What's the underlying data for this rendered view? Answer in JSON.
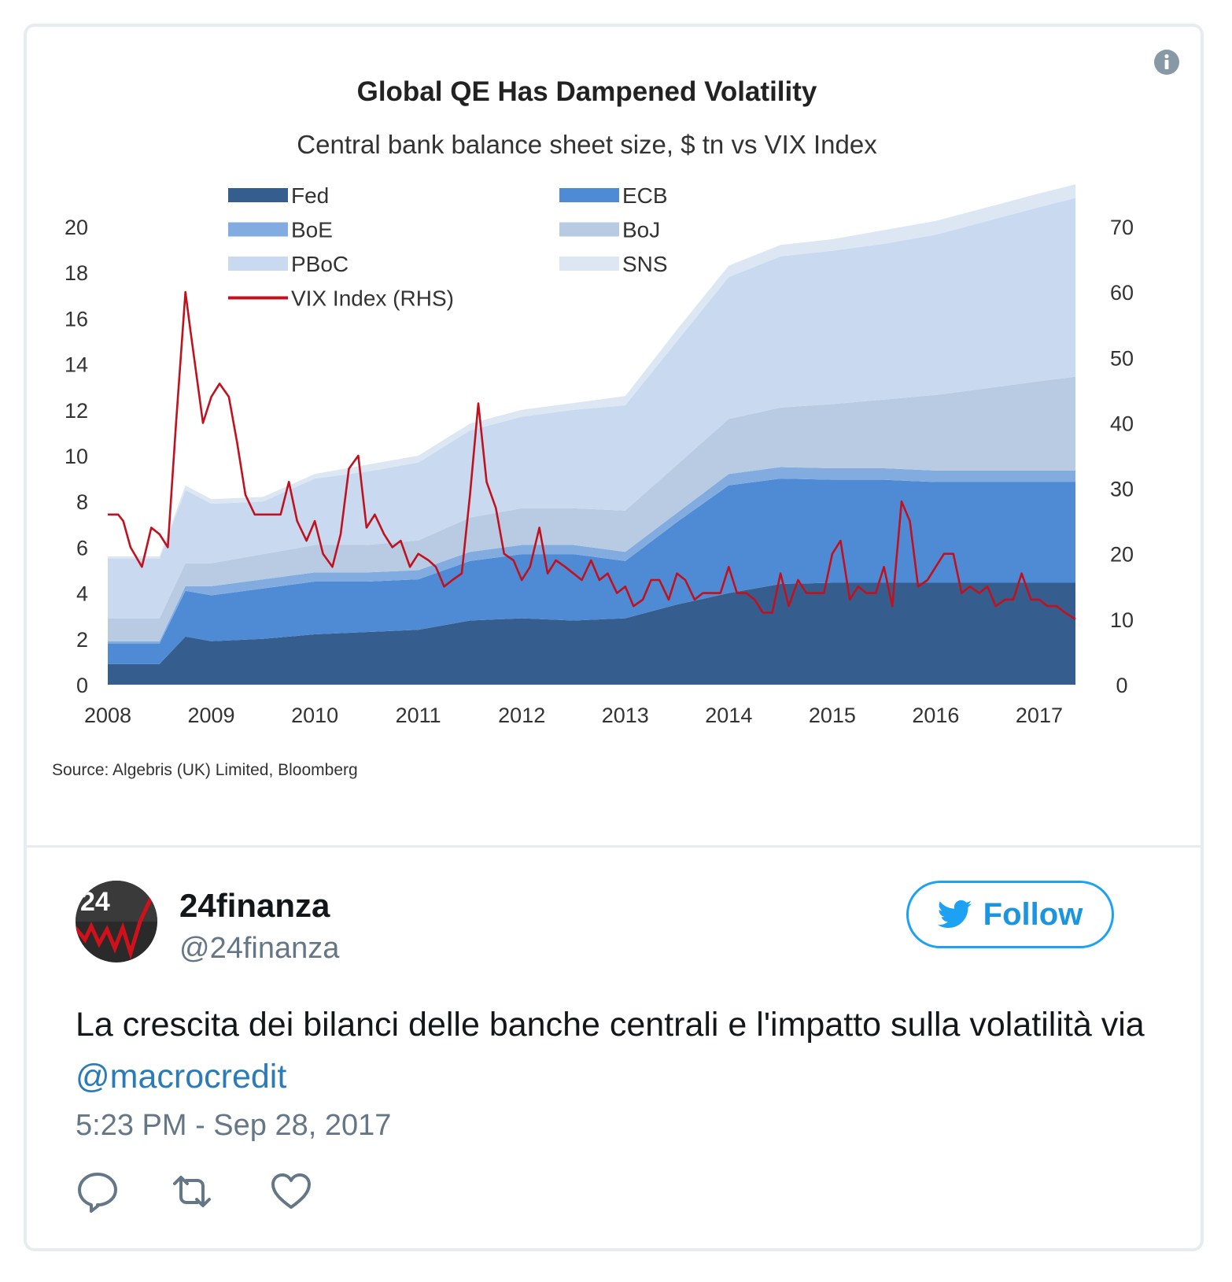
{
  "tweet": {
    "author_name": "24finanza",
    "author_handle": "@24finanza",
    "follow_label": "Follow",
    "text_before": "La crescita dei bilanci delle banche centrali e l'impatto sulla volatilità via ",
    "mention": "@macrocredit",
    "timestamp": "5:23 PM - Sep 28, 2017",
    "avatar_text": "24",
    "icons": {
      "info": "info-icon",
      "follow": "twitter-bird-icon",
      "reply": "reply-icon",
      "retweet": "retweet-icon",
      "like": "heart-icon"
    }
  },
  "chart_data": {
    "type": "area",
    "title": "Global QE Has Dampened Volatility",
    "subtitle": "Central bank balance sheet size, $ tn vs VIX Index",
    "source": "Source: Algebris (UK) Limited, Bloomberg",
    "x_ticks": [
      "2008",
      "2009",
      "2010",
      "2011",
      "2012",
      "2013",
      "2014",
      "2015",
      "2016",
      "2017"
    ],
    "y_left_ticks": [
      "0",
      "2",
      "4",
      "6",
      "8",
      "10",
      "12",
      "14",
      "16",
      "18",
      "20"
    ],
    "y_right_ticks": [
      "0",
      "10",
      "20",
      "30",
      "40",
      "50",
      "60",
      "70"
    ],
    "ylim_left": [
      0,
      20
    ],
    "ylim_right": [
      0,
      70
    ],
    "xlim": [
      2008,
      2017.35
    ],
    "x": [
      2008.0,
      2008.5,
      2008.75,
      2009.0,
      2009.5,
      2010.0,
      2010.5,
      2011.0,
      2011.5,
      2012.0,
      2012.5,
      2013.0,
      2013.5,
      2014.0,
      2014.5,
      2015.0,
      2015.5,
      2016.0,
      2016.5,
      2017.0,
      2017.35
    ],
    "series": [
      {
        "name": "Fed",
        "color": "#355e8e",
        "values": [
          0.9,
          0.9,
          2.1,
          1.9,
          2.0,
          2.2,
          2.3,
          2.4,
          2.8,
          2.9,
          2.8,
          2.9,
          3.5,
          4.0,
          4.4,
          4.45,
          4.45,
          4.45,
          4.45,
          4.45,
          4.45
        ]
      },
      {
        "name": "ECB",
        "color": "#4f8ad4",
        "values": [
          0.9,
          0.9,
          2.0,
          2.0,
          2.2,
          2.3,
          2.2,
          2.2,
          2.6,
          2.8,
          2.9,
          2.5,
          3.6,
          4.7,
          4.6,
          4.5,
          4.5,
          4.4,
          4.4,
          4.4,
          4.4
        ]
      },
      {
        "name": "BoE",
        "color": "#82ace0",
        "values": [
          0.1,
          0.1,
          0.2,
          0.4,
          0.4,
          0.4,
          0.4,
          0.4,
          0.4,
          0.4,
          0.4,
          0.4,
          0.4,
          0.5,
          0.5,
          0.5,
          0.5,
          0.5,
          0.5,
          0.5,
          0.5
        ]
      },
      {
        "name": "BoJ",
        "color": "#b8cbe2",
        "values": [
          1.0,
          1.0,
          1.0,
          1.0,
          1.1,
          1.2,
          1.2,
          1.3,
          1.5,
          1.6,
          1.6,
          1.8,
          2.1,
          2.4,
          2.6,
          2.8,
          3.0,
          3.3,
          3.6,
          3.9,
          4.1
        ]
      },
      {
        "name": "PBoC",
        "color": "#c9daf0",
        "values": [
          2.6,
          2.6,
          3.2,
          2.6,
          2.3,
          2.9,
          3.2,
          3.4,
          3.8,
          4.0,
          4.3,
          4.6,
          5.4,
          6.2,
          6.6,
          6.7,
          6.8,
          7.0,
          7.3,
          7.6,
          7.8
        ]
      },
      {
        "name": "SNS",
        "color": "#dde7f3",
        "values": [
          0.1,
          0.1,
          0.2,
          0.2,
          0.2,
          0.2,
          0.3,
          0.3,
          0.3,
          0.3,
          0.3,
          0.4,
          0.5,
          0.5,
          0.5,
          0.5,
          0.6,
          0.6,
          0.6,
          0.6,
          0.6
        ]
      }
    ],
    "vix": {
      "name": "VIX Index (RHS)",
      "color": "#c0111f",
      "x": [
        2008.0,
        2008.1,
        2008.15,
        2008.22,
        2008.33,
        2008.42,
        2008.5,
        2008.58,
        2008.66,
        2008.75,
        2008.8,
        2008.92,
        2009.0,
        2009.08,
        2009.17,
        2009.25,
        2009.33,
        2009.42,
        2009.5,
        2009.6,
        2009.67,
        2009.75,
        2009.83,
        2009.92,
        2010.0,
        2010.08,
        2010.17,
        2010.25,
        2010.33,
        2010.42,
        2010.5,
        2010.58,
        2010.67,
        2010.75,
        2010.83,
        2010.92,
        2011.0,
        2011.1,
        2011.17,
        2011.25,
        2011.33,
        2011.42,
        2011.5,
        2011.58,
        2011.66,
        2011.75,
        2011.83,
        2011.92,
        2012.0,
        2012.08,
        2012.17,
        2012.25,
        2012.33,
        2012.42,
        2012.5,
        2012.58,
        2012.67,
        2012.75,
        2012.83,
        2012.92,
        2013.0,
        2013.08,
        2013.17,
        2013.25,
        2013.33,
        2013.42,
        2013.5,
        2013.58,
        2013.67,
        2013.75,
        2013.83,
        2013.92,
        2014.0,
        2014.08,
        2014.17,
        2014.25,
        2014.33,
        2014.42,
        2014.5,
        2014.58,
        2014.67,
        2014.75,
        2014.83,
        2014.92,
        2015.0,
        2015.08,
        2015.17,
        2015.25,
        2015.33,
        2015.42,
        2015.5,
        2015.58,
        2015.67,
        2015.75,
        2015.83,
        2015.92,
        2016.0,
        2016.08,
        2016.17,
        2016.25,
        2016.33,
        2016.42,
        2016.5,
        2016.58,
        2016.67,
        2016.75,
        2016.83,
        2016.92,
        2017.0,
        2017.08,
        2017.17,
        2017.25,
        2017.35
      ],
      "values": [
        26,
        26,
        25,
        21,
        18,
        24,
        23,
        21,
        40,
        60,
        54,
        40,
        44,
        46,
        44,
        37,
        29,
        26,
        26,
        26,
        26,
        31,
        25,
        22,
        25,
        20,
        18,
        23,
        33,
        35,
        24,
        26,
        23,
        21,
        22,
        18,
        20,
        19,
        18,
        15,
        16,
        17,
        29,
        43,
        31,
        27,
        20,
        19,
        16,
        18,
        24,
        17,
        19,
        18,
        17,
        16,
        19,
        16,
        17,
        14,
        15,
        12,
        13,
        16,
        16,
        13,
        17,
        16,
        13,
        14,
        14,
        14,
        18,
        14,
        14,
        13,
        11,
        11,
        17,
        12,
        16,
        14,
        14,
        14,
        20,
        22,
        13,
        15,
        14,
        14,
        18,
        12,
        28,
        25,
        15,
        16,
        18,
        20,
        20,
        14,
        15,
        14,
        15,
        12,
        13,
        13,
        17,
        13,
        13,
        12,
        12,
        11,
        10
      ]
    },
    "legend": "top-left, two columns",
    "grid": false
  }
}
